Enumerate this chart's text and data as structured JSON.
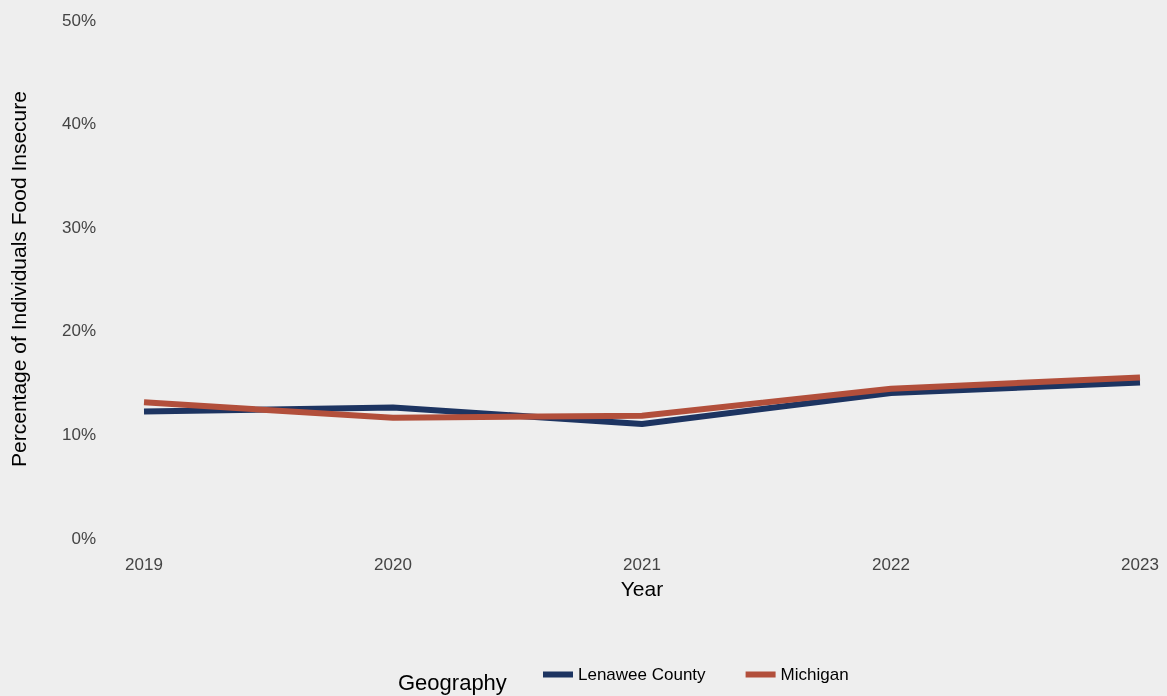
{
  "chart_data": {
    "type": "line",
    "xlabel": "Year",
    "ylabel": "Percentage of Individuals Food Insecure",
    "legend_title": "Geography",
    "legend": "bottom",
    "grid": false,
    "marker": "none",
    "line_style": "solid",
    "categories": [
      "2019",
      "2020",
      "2021",
      "2022",
      "2023"
    ],
    "ylim": [
      0,
      50
    ],
    "yticks": [
      {
        "value": 0,
        "label": "0%"
      },
      {
        "value": 10,
        "label": "10%"
      },
      {
        "value": 20,
        "label": "20%"
      },
      {
        "value": 30,
        "label": "30%"
      },
      {
        "value": 40,
        "label": "40%"
      },
      {
        "value": 50,
        "label": "50%"
      }
    ],
    "series": [
      {
        "name": "Lenawee County",
        "color": "#1d3461",
        "values": [
          12.2,
          12.6,
          11.0,
          14.0,
          15.0
        ]
      },
      {
        "name": "Michigan",
        "color": "#b24f3b",
        "values": [
          13.1,
          11.6,
          11.8,
          14.4,
          15.5
        ]
      }
    ]
  }
}
